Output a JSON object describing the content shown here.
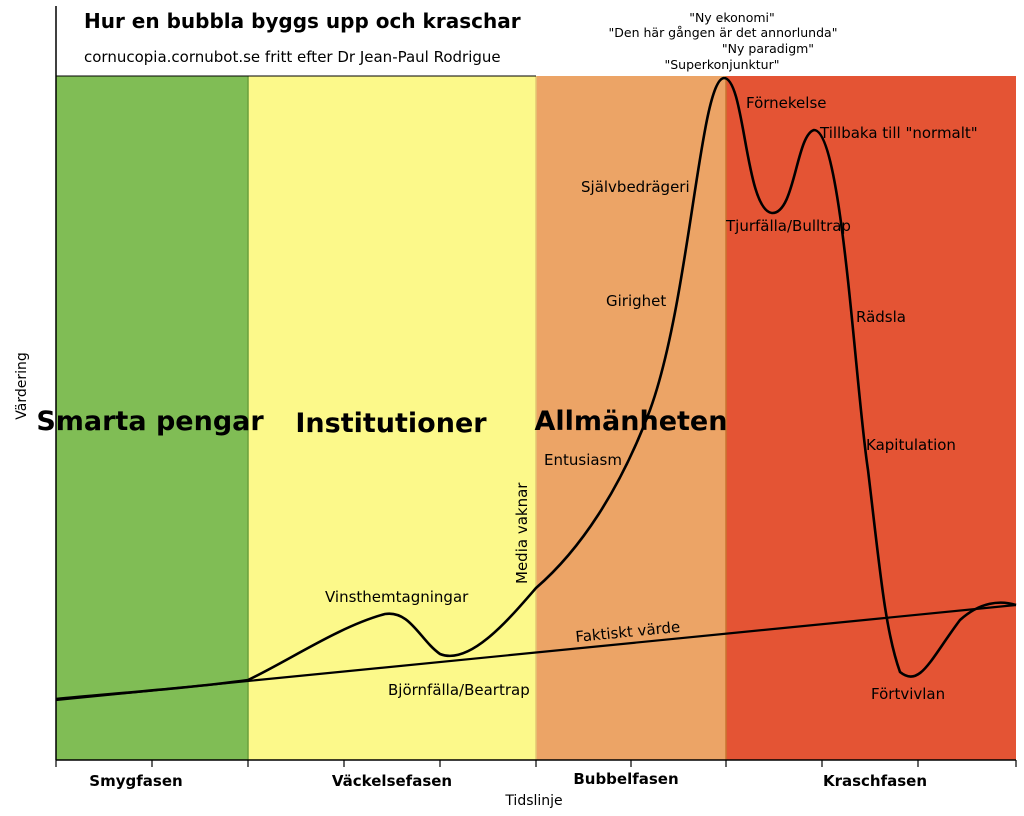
{
  "title": "Hur en bubbla byggs upp och kraschar",
  "subtitle": "cornucopia.cornubot.se fritt efter Dr Jean-Paul Rodrigue",
  "axes": {
    "y_label": "Värdering",
    "x_label": "Tidslinje"
  },
  "zones": [
    {
      "name": "Smarta pengar",
      "color": "#80bd55",
      "text_color": "#5d8f3d"
    },
    {
      "name": "Institutioner",
      "color": "#fcf98a",
      "text_color": "#b5ae72"
    },
    {
      "name": "Allmänheten",
      "color": "#eca466",
      "text_color": "#b7773f"
    },
    {
      "name": "",
      "color": "#e45434",
      "text_color": "#e45434"
    }
  ],
  "phases": [
    "Smygfasen",
    "Väckelsefasen",
    "Bubbelfasen",
    "Kraschfasen"
  ],
  "annotations": {
    "quote_1": "\"Ny ekonomi\"",
    "quote_2": "\"Den här gången är det annorlunda\"",
    "quote_3": "\"Ny paradigm\"",
    "quote_4": "\"Superkonjunktur\"",
    "fornekelse": "Förnekelse",
    "tillbaka": "Tillbaka till \"normalt\"",
    "sjalvbedrageri": "Självbedrägeri",
    "tjurfalla": "Tjurfälla/Bulltrap",
    "girighet": "Girighet",
    "radsla": "Rädsla",
    "kapitulation": "Kapitulation",
    "entusiasm": "Entusiasm",
    "media": "Media vaknar",
    "vinst": "Vinsthemtagningar",
    "faktiskt": "Faktiskt värde",
    "bjornfalla": "Björnfälla/Beartrap",
    "fortvivlan": "Förtvivlan"
  },
  "colors": {
    "curve": "#000000",
    "gray_label": "#8a8460",
    "trap_label": "#a34a2a"
  }
}
